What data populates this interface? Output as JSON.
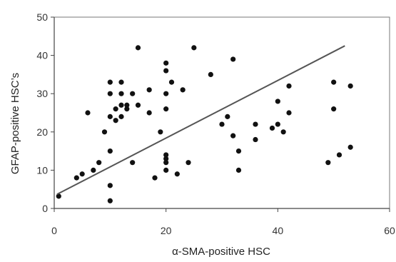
{
  "chart_data": {
    "type": "scatter",
    "title": "",
    "xlabel": "α-SMA-positive HSC",
    "ylabel": "GFAP-positive HSC’s",
    "xlim": [
      0,
      60
    ],
    "ylim": [
      0,
      50
    ],
    "x_ticks": [
      0,
      20,
      40,
      60
    ],
    "y_ticks": [
      0,
      10,
      20,
      30,
      40,
      50
    ],
    "grid": false,
    "legend": "none",
    "marker_color": "#111111",
    "trendline_color": "#555555",
    "trendline": {
      "x": [
        0.5,
        52
      ],
      "y": [
        3.7,
        42.5
      ]
    },
    "points": [
      [
        0.8,
        3.2
      ],
      [
        4,
        8
      ],
      [
        5,
        9
      ],
      [
        6,
        25
      ],
      [
        7,
        10
      ],
      [
        8,
        12
      ],
      [
        9,
        20
      ],
      [
        10,
        2
      ],
      [
        10,
        6
      ],
      [
        10,
        15
      ],
      [
        10,
        24
      ],
      [
        10,
        30
      ],
      [
        10,
        33
      ],
      [
        11,
        23
      ],
      [
        11,
        26
      ],
      [
        12,
        24
      ],
      [
        12,
        27
      ],
      [
        12,
        30
      ],
      [
        12,
        33
      ],
      [
        13,
        26
      ],
      [
        13,
        27
      ],
      [
        14,
        12
      ],
      [
        14,
        30
      ],
      [
        15,
        27
      ],
      [
        15,
        42
      ],
      [
        17,
        25
      ],
      [
        17,
        31
      ],
      [
        18,
        8
      ],
      [
        19,
        20
      ],
      [
        20,
        10
      ],
      [
        20,
        12
      ],
      [
        20,
        13
      ],
      [
        20,
        14
      ],
      [
        20,
        26
      ],
      [
        20,
        30
      ],
      [
        20,
        36
      ],
      [
        20,
        38
      ],
      [
        21,
        33
      ],
      [
        22,
        9
      ],
      [
        23,
        31
      ],
      [
        24,
        12
      ],
      [
        25,
        42
      ],
      [
        28,
        35
      ],
      [
        30,
        22
      ],
      [
        31,
        24
      ],
      [
        32,
        19
      ],
      [
        32,
        39
      ],
      [
        33,
        10
      ],
      [
        33,
        15
      ],
      [
        36,
        18
      ],
      [
        36,
        22
      ],
      [
        39,
        21
      ],
      [
        40,
        22
      ],
      [
        40,
        28
      ],
      [
        41,
        20
      ],
      [
        42,
        25
      ],
      [
        42,
        32
      ],
      [
        49,
        12
      ],
      [
        50,
        26
      ],
      [
        50,
        33
      ],
      [
        51,
        14
      ],
      [
        53,
        16
      ],
      [
        53,
        32
      ]
    ]
  }
}
